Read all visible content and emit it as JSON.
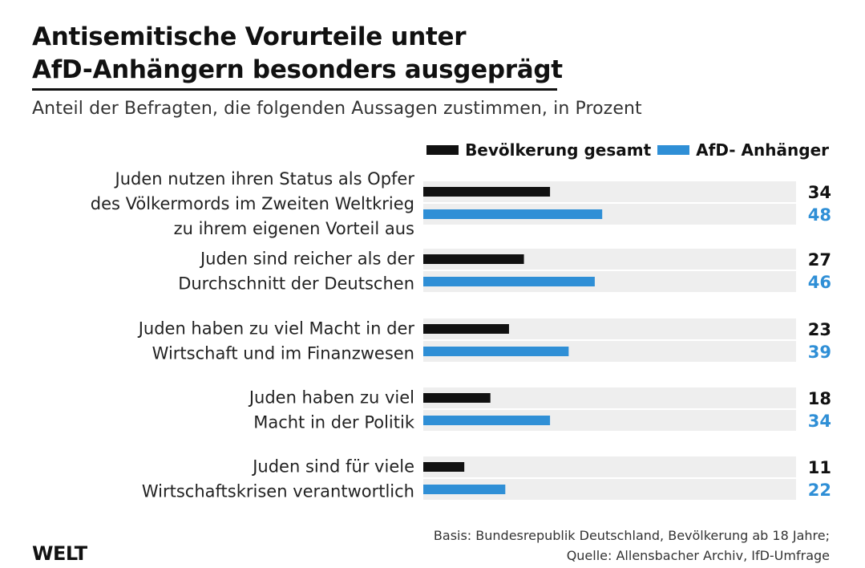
{
  "header": {
    "title_line1": "Antisemitische Vorurteile unter",
    "title_line2": "AfD-Anhängern besonders ausgeprägt",
    "subtitle": "Anteil der Befragten, die folgenden Aussagen zustimmen, in Prozent"
  },
  "legend": [
    {
      "label": "Bevölkerung gesamt",
      "color": "#111111"
    },
    {
      "label": "AfD- Anhänger",
      "color": "#2f8fd6"
    }
  ],
  "chart_data": {
    "type": "bar",
    "orientation": "horizontal",
    "title": "Antisemitische Vorurteile unter AfD-Anhängern besonders ausgeprägt",
    "subtitle": "Anteil der Befragten, die folgenden Aussagen zustimmen, in Prozent",
    "categories": [
      [
        "Juden nutzen ihren Status als Opfer",
        "des Völkermords im Zweiten Weltkrieg",
        "zu ihrem eigenen Vorteil aus"
      ],
      [
        "Juden sind reicher als der",
        "Durchschnitt der Deutschen"
      ],
      [
        "Juden haben zu viel Macht in der",
        "Wirtschaft und im Finanzwesen"
      ],
      [
        "Juden haben zu viel",
        "Macht in der Politik"
      ],
      [
        "Juden sind für viele",
        "Wirtschaftskrisen verantwortlich"
      ]
    ],
    "series": [
      {
        "name": "Bevölkerung gesamt",
        "color": "#111111",
        "values": [
          34,
          27,
          23,
          18,
          11
        ]
      },
      {
        "name": "AfD- Anhänger",
        "color": "#2f8fd6",
        "values": [
          48,
          46,
          39,
          34,
          22
        ]
      }
    ],
    "xlim": [
      0,
      100
    ],
    "background_track": true,
    "legend_position": "top-right",
    "value_labels": true
  },
  "footer": {
    "basis_line1": "Basis: Bundesrepublik Deutschland, Bevölkerung ab 18 Jahre;",
    "basis_line2": "Quelle: Allensbacher Archiv, IfD-Umfrage",
    "logo": "WELT"
  },
  "colors": {
    "track": "#eeeeee",
    "black_series": "#111111",
    "blue_series": "#2f8fd6"
  }
}
